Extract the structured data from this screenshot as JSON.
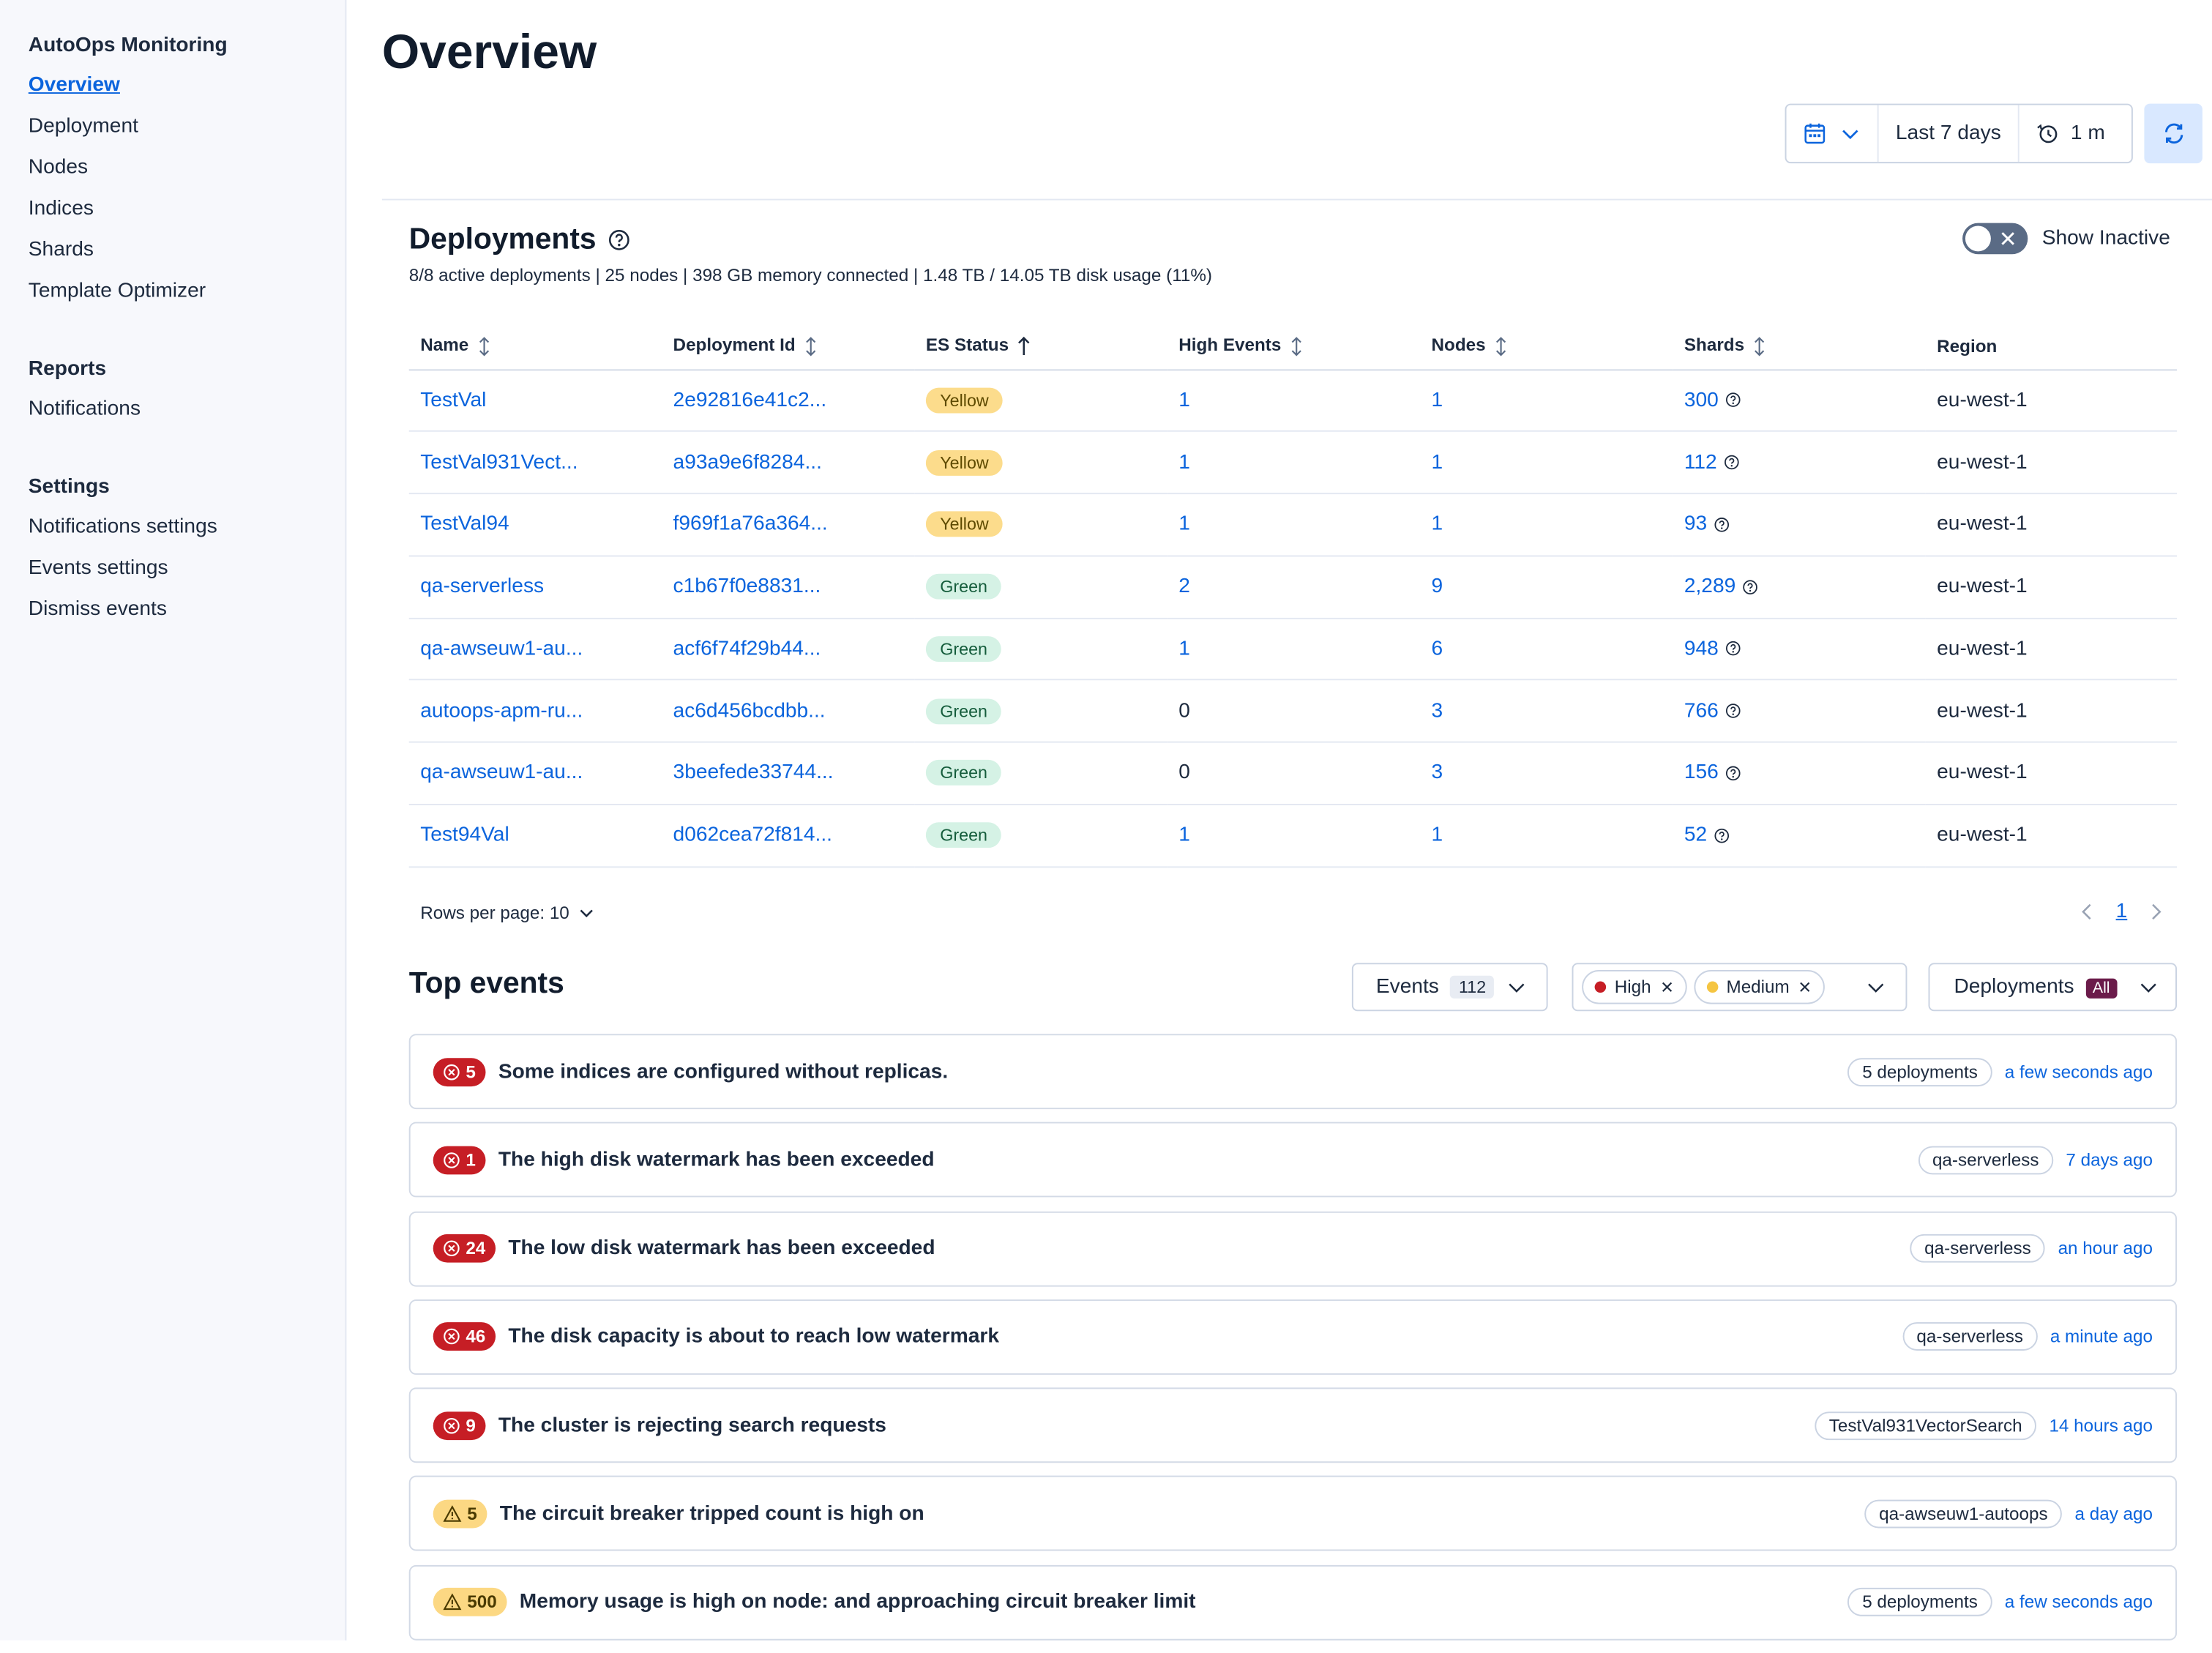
{
  "sidebar": {
    "app_title": "AutoOps Monitoring",
    "main_items": [
      "Overview",
      "Deployment",
      "Nodes",
      "Indices",
      "Shards",
      "Template Optimizer"
    ],
    "reports_title": "Reports",
    "reports_items": [
      "Notifications"
    ],
    "settings_title": "Settings",
    "settings_items": [
      "Notifications settings",
      "Events settings",
      "Dismiss events"
    ]
  },
  "header": {
    "title": "Overview",
    "time_range": "Last 7 days",
    "refresh_interval": "1 m"
  },
  "deployments": {
    "title": "Deployments",
    "summary": "8/8 active deployments | 25 nodes | 398 GB memory connected | 1.48 TB / 14.05 TB disk usage (11%)",
    "show_inactive_label": "Show Inactive",
    "columns": [
      "Name",
      "Deployment Id",
      "ES Status",
      "High Events",
      "Nodes",
      "Shards",
      "Region"
    ],
    "rows": [
      {
        "name": "TestVal",
        "id": "2e92816e41c2...",
        "status": "Yellow",
        "high_events": "1",
        "nodes": "1",
        "shards": "300",
        "region": "eu-west-1"
      },
      {
        "name": "TestVal931Vect...",
        "id": "a93a9e6f8284...",
        "status": "Yellow",
        "high_events": "1",
        "nodes": "1",
        "shards": "112",
        "region": "eu-west-1"
      },
      {
        "name": "TestVal94",
        "id": "f969f1a76a364...",
        "status": "Yellow",
        "high_events": "1",
        "nodes": "1",
        "shards": "93",
        "region": "eu-west-1"
      },
      {
        "name": "qa-serverless",
        "id": "c1b67f0e8831...",
        "status": "Green",
        "high_events": "2",
        "nodes": "9",
        "shards": "2,289",
        "region": "eu-west-1"
      },
      {
        "name": "qa-awseuw1-au...",
        "id": "acf6f74f29b44...",
        "status": "Green",
        "high_events": "1",
        "nodes": "6",
        "shards": "948",
        "region": "eu-west-1"
      },
      {
        "name": "autoops-apm-ru...",
        "id": "ac6d456bcdbb...",
        "status": "Green",
        "high_events": "0",
        "nodes": "3",
        "shards": "766",
        "region": "eu-west-1"
      },
      {
        "name": "qa-awseuw1-au...",
        "id": "3beefede33744...",
        "status": "Green",
        "high_events": "0",
        "nodes": "3",
        "shards": "156",
        "region": "eu-west-1"
      },
      {
        "name": "Test94Val",
        "id": "d062cea72f814...",
        "status": "Green",
        "high_events": "1",
        "nodes": "1",
        "shards": "52",
        "region": "eu-west-1"
      }
    ],
    "rows_per_page": "Rows per page: 10",
    "current_page": "1"
  },
  "top_events": {
    "title": "Top events",
    "events_filter_label": "Events",
    "events_filter_count": "112",
    "severity_chips": [
      {
        "label": "High",
        "color": "#c61e25"
      },
      {
        "label": "Medium",
        "color": "#f5c542"
      }
    ],
    "deployments_filter_label": "Deployments",
    "deployments_filter_badge": "All",
    "items": [
      {
        "severity": "high",
        "count": "5",
        "text": "Some indices are configured without replicas.",
        "deployment": "5 deployments",
        "time": "a few seconds ago"
      },
      {
        "severity": "high",
        "count": "1",
        "text": "The high disk watermark has been exceeded",
        "deployment": "qa-serverless",
        "time": "7 days ago"
      },
      {
        "severity": "high",
        "count": "24",
        "text": "The low disk watermark has been exceeded",
        "deployment": "qa-serverless",
        "time": "an hour ago"
      },
      {
        "severity": "high",
        "count": "46",
        "text": "The disk capacity is about to reach low watermark",
        "deployment": "qa-serverless",
        "time": "a minute ago"
      },
      {
        "severity": "high",
        "count": "9",
        "text": "The cluster is rejecting search requests",
        "deployment": "TestVal931VectorSearch",
        "time": "14 hours ago"
      },
      {
        "severity": "medium",
        "count": "5",
        "text": "The circuit breaker tripped count is high on",
        "deployment": "qa-awseuw1-autoops",
        "time": "a day ago"
      },
      {
        "severity": "medium",
        "count": "500",
        "text": "Memory usage is high on node: and approaching circuit breaker limit",
        "deployment": "5 deployments",
        "time": "a few seconds ago"
      }
    ]
  }
}
